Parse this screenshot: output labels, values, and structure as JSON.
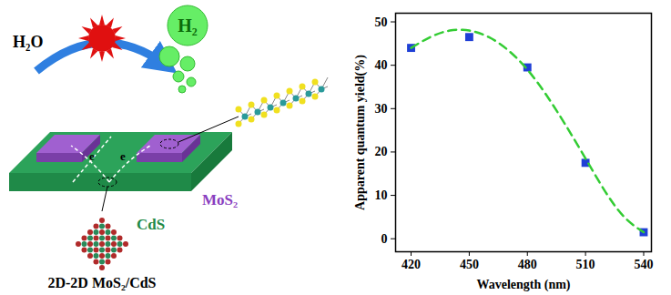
{
  "diagram": {
    "reactant": "H₂O",
    "product": "H₂",
    "electron_labels": [
      "e",
      "e"
    ],
    "layer_top": "MoS₂",
    "layer_bottom": "CdS",
    "caption": "2D-2D MoS₂/CdS"
  },
  "chart_data": {
    "type": "scatter",
    "x_label": "Wavelength (nm)",
    "y_label": "Apparent quantum yield(%)",
    "xlim": [
      412,
      544
    ],
    "ylim": [
      -3,
      52
    ],
    "xticks": [
      420,
      450,
      480,
      510,
      540
    ],
    "yticks": [
      0,
      10,
      20,
      30,
      40,
      50
    ],
    "series": [
      {
        "type": "scatter",
        "color": "#1f3fd6",
        "marker": "square",
        "x": [
          420,
          450,
          480,
          510,
          540
        ],
        "values": [
          44,
          46.5,
          39.5,
          17.5,
          1.5
        ]
      },
      {
        "type": "line",
        "color": "#33cc33",
        "line_style": "dashed",
        "x": [
          420,
          430,
          440,
          450,
          460,
          470,
          480,
          490,
          500,
          510,
          520,
          530,
          540
        ],
        "values": [
          44,
          46.5,
          48,
          48,
          46.5,
          43.5,
          39,
          33,
          26,
          18.5,
          11,
          5,
          1.5
        ]
      }
    ]
  }
}
